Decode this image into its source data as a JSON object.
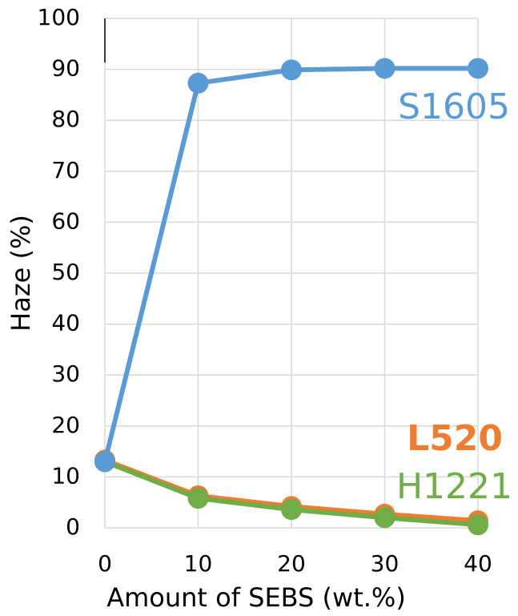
{
  "chart_data": {
    "type": "line",
    "x_label": "Amount of SEBS (wt.%)",
    "y_label": "Haze (%)",
    "x": [
      0,
      10,
      20,
      30,
      40
    ],
    "series": [
      {
        "name": "S1605",
        "color": "#5b9bd5",
        "values": [
          13,
          87.3,
          89.9,
          90.2,
          90.2
        ]
      },
      {
        "name": "L520",
        "color": "#ed7d31",
        "values": [
          13.3,
          6.3,
          4.2,
          2.7,
          1.4
        ]
      },
      {
        "name": "H1221",
        "color": "#70ad47",
        "values": [
          13,
          5.8,
          3.6,
          2.0,
          0.6
        ]
      }
    ],
    "xlim": [
      0,
      40
    ],
    "xticks": [
      0,
      10,
      20,
      30,
      40
    ],
    "ylim": [
      0,
      100
    ],
    "yticks": [
      0,
      10,
      20,
      30,
      40,
      50,
      60,
      70,
      80,
      90,
      100
    ],
    "grid": true
  }
}
